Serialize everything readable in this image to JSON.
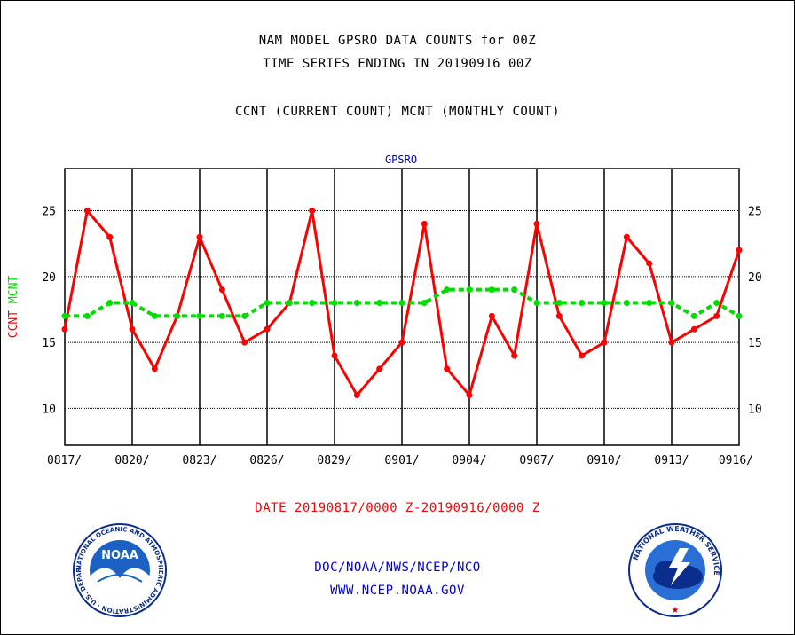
{
  "header": {
    "title_line1": "NAM MODEL GPSRO DATA COUNTS for 00Z",
    "title_line2": "TIME SERIES ENDING IN 20190916 00Z",
    "subtitle": "CCNT (CURRENT COUNT) MCNT (MONTHLY COUNT)"
  },
  "footer": {
    "date_range": "DATE 20190817/0000 Z-20190916/0000 Z",
    "agency": "DOC/NOAA/NWS/NCEP/NCO",
    "website": "WWW.NCEP.NOAA.GOV"
  },
  "logos": {
    "noaa_text": "NOAA",
    "noaa_ring_text": "NATIONAL OCEANIC AND ATMOSPHERIC ADMINISTRATION · U.S. DEPARTMENT OF COMMERCE",
    "nws_ring_text": "NATIONAL WEATHER SERVICE"
  },
  "colors": {
    "ccnt": "#ff0000",
    "mcnt": "#00dd00",
    "panel_title": "#0000cc",
    "date_text": "#ff0000",
    "footer_text": "#0000cc"
  },
  "chart_data": {
    "type": "line",
    "title": "GPSRO",
    "ylabel_parts": [
      {
        "text": "CCNT",
        "color": "#ff0000"
      },
      {
        "text": "MCNT",
        "color": "#00dd00"
      }
    ],
    "x": [
      "0817",
      "0818",
      "0819",
      "0820",
      "0821",
      "0822",
      "0823",
      "0824",
      "0825",
      "0826",
      "0827",
      "0828",
      "0829",
      "0830",
      "0831",
      "0901",
      "0902",
      "0903",
      "0904",
      "0905",
      "0906",
      "0907",
      "0908",
      "0909",
      "0910",
      "0911",
      "0912",
      "0913",
      "0914",
      "0915",
      "0916"
    ],
    "xtick_labels": [
      "0817/",
      "0820/",
      "0823/",
      "0826/",
      "0829/",
      "0901/",
      "0904/",
      "0907/",
      "0910/",
      "0913/",
      "0916/"
    ],
    "xtick_every": 3,
    "yticks": [
      10,
      15,
      20,
      25
    ],
    "ylim": [
      7.2,
      28.2
    ],
    "grid": true,
    "series": [
      {
        "name": "CCNT",
        "color": "#ff0000",
        "style": "solid",
        "values": [
          16,
          25,
          23,
          16,
          13,
          17,
          23,
          19,
          15,
          16,
          18,
          25,
          14,
          11,
          13,
          15,
          24,
          13,
          11,
          17,
          14,
          24,
          17,
          14,
          15,
          23,
          21,
          15,
          16,
          17,
          22
        ]
      },
      {
        "name": "MCNT",
        "color": "#00dd00",
        "style": "dashed",
        "values": [
          17,
          17,
          18,
          18,
          17,
          17,
          17,
          17,
          17,
          18,
          18,
          18,
          18,
          18,
          18,
          18,
          18,
          19,
          19,
          19,
          19,
          18,
          18,
          18,
          18,
          18,
          18,
          18,
          17,
          18,
          17
        ]
      }
    ]
  }
}
